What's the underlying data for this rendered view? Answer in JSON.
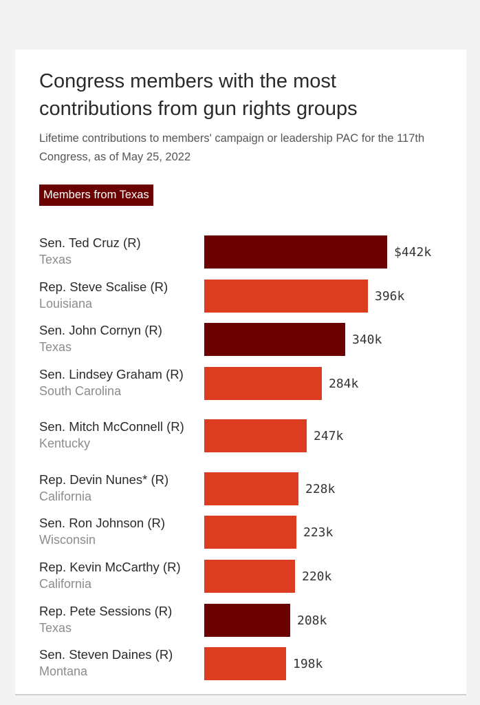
{
  "chart_data": {
    "type": "bar",
    "orientation": "horizontal",
    "title": "Congress members with the most contributions from gun rights groups",
    "subtitle": "Lifetime contributions to members' campaign or leadership PAC for the 117th Congress, as of May 25, 2022",
    "legend": [
      {
        "label": "Members from Texas",
        "color": "#6b0000"
      }
    ],
    "default_color": "#dc3d1f",
    "highlight_color": "#6b0000",
    "xlim": [
      0,
      442
    ],
    "unit": "thousand USD",
    "series": [
      {
        "name": "Sen. Ted Cruz (R)",
        "state": "Texas",
        "value": 442,
        "label": "$442k",
        "texas": true
      },
      {
        "name": "Rep. Steve Scalise (R)",
        "state": "Louisiana",
        "value": 396,
        "label": "396k",
        "texas": false
      },
      {
        "name": "Sen. John Cornyn (R)",
        "state": "Texas",
        "value": 340,
        "label": "340k",
        "texas": true
      },
      {
        "name": "Sen. Lindsey Graham (R)",
        "state": "South Carolina",
        "value": 284,
        "label": "284k",
        "texas": false
      },
      {
        "name": "Sen. Mitch McConnell (R)",
        "state": "Kentucky",
        "value": 247,
        "label": "247k",
        "texas": false
      },
      {
        "name": "Rep. Devin Nunes* (R)",
        "state": "California",
        "value": 228,
        "label": "228k",
        "texas": false
      },
      {
        "name": "Sen. Ron Johnson (R)",
        "state": "Wisconsin",
        "value": 223,
        "label": "223k",
        "texas": false
      },
      {
        "name": "Rep. Kevin McCarthy (R)",
        "state": "California",
        "value": 220,
        "label": "220k",
        "texas": false
      },
      {
        "name": "Rep. Pete Sessions (R)",
        "state": "Texas",
        "value": 208,
        "label": "208k",
        "texas": true
      },
      {
        "name": "Sen. Steven Daines (R)",
        "state": "Montana",
        "value": 198,
        "label": "198k",
        "texas": false
      }
    ]
  }
}
